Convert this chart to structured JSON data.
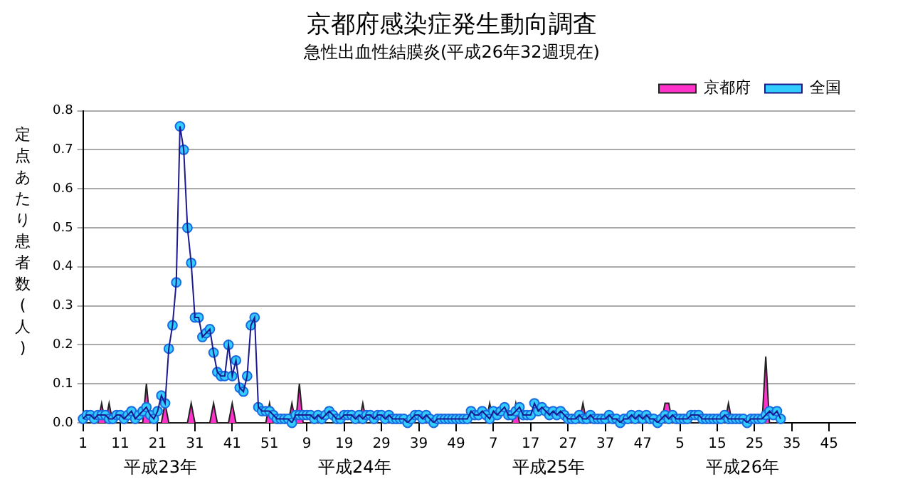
{
  "chart_data": {
    "type": "line",
    "title": "京都府感染症発生動向調査",
    "subtitle": "急性出血性結膜炎(平成26年32週現在)",
    "ylabel": "定点あたり患者数(人)",
    "annotations": [
      "平成23年",
      "平成24年",
      "平成25年",
      "平成26年"
    ],
    "categories": [
      "1",
      null,
      null,
      null,
      null,
      null,
      null,
      null,
      null,
      null,
      "11",
      null,
      null,
      null,
      null,
      null,
      null,
      null,
      null,
      null,
      "21",
      null,
      null,
      null,
      null,
      null,
      null,
      null,
      null,
      null,
      "31",
      null,
      null,
      null,
      null,
      null,
      null,
      null,
      null,
      null,
      "41",
      null,
      null,
      null,
      null,
      null,
      null,
      null,
      null,
      null,
      "51",
      null,
      null,
      null,
      null,
      null,
      null,
      null,
      null,
      null,
      "9",
      null,
      null,
      null,
      null,
      null,
      null,
      null,
      null,
      null,
      "19",
      null,
      null,
      null,
      null,
      null,
      null,
      null,
      null,
      null,
      "29",
      null,
      null,
      null,
      null,
      null,
      null,
      null,
      null,
      null,
      "39",
      null,
      null,
      null,
      null,
      null,
      null,
      null,
      null,
      null,
      "49",
      null,
      null,
      null,
      null,
      null,
      null,
      null,
      null,
      null,
      "7",
      null,
      null,
      null,
      null,
      null,
      null,
      null,
      null,
      null,
      "17",
      null,
      null,
      null,
      null,
      null,
      null,
      null,
      null,
      null,
      "27",
      null,
      null,
      null,
      null,
      null,
      null,
      null,
      null,
      null,
      "37",
      null,
      null,
      null,
      null,
      null,
      null,
      null,
      null,
      null,
      "47",
      null,
      null,
      null,
      null,
      null,
      null,
      null,
      null,
      null,
      "5",
      null,
      null,
      null,
      null,
      null,
      null,
      null,
      null,
      null,
      "15",
      null,
      null,
      null,
      null,
      null,
      null,
      null,
      null,
      null,
      "25",
      null,
      null,
      null,
      null,
      null,
      null,
      null,
      null,
      null,
      "35",
      null,
      null,
      null,
      null,
      null,
      null,
      null,
      null,
      null,
      "45",
      null,
      null,
      null,
      null,
      null,
      null,
      null
    ],
    "series": [
      {
        "name": "京都府",
        "type": "area",
        "color": "#ff33cc",
        "values": [
          0,
          0,
          0,
          0,
          0,
          0.05,
          0,
          0.05,
          0,
          0,
          0,
          0,
          0,
          0,
          0,
          0,
          0,
          0.1,
          0,
          0,
          0,
          0,
          0.05,
          0,
          0,
          0,
          0,
          0,
          0,
          0.05,
          0,
          0,
          0,
          0,
          0,
          0.05,
          0,
          0,
          0,
          0,
          0.05,
          0,
          0,
          0,
          0,
          0,
          0,
          0,
          0,
          0,
          0.05,
          0,
          0,
          0,
          0,
          0,
          0.05,
          0,
          0.1,
          0,
          0,
          0,
          0,
          0,
          0,
          0,
          0,
          0,
          0,
          0,
          0,
          0,
          0,
          0,
          0,
          0.05,
          0,
          0,
          0,
          0,
          0,
          0,
          0,
          0,
          0,
          0,
          0,
          0,
          0,
          0,
          0,
          0,
          0,
          0,
          0,
          0,
          0,
          0,
          0,
          0,
          0,
          0,
          0,
          0,
          0,
          0,
          0,
          0,
          0,
          0.05,
          0,
          0,
          0,
          0,
          0,
          0,
          0.05,
          0,
          0,
          0,
          0,
          0,
          0,
          0,
          0,
          0,
          0,
          0,
          0,
          0,
          0,
          0,
          0,
          0,
          0.05,
          0,
          0,
          0,
          0,
          0,
          0,
          0,
          0,
          0,
          0,
          0,
          0,
          0,
          0,
          0,
          0,
          0,
          0,
          0,
          0,
          0,
          0.05,
          0.05,
          0,
          0,
          0,
          0,
          0,
          0,
          0,
          0,
          0,
          0,
          0,
          0,
          0,
          0,
          0,
          0.05,
          0,
          0,
          0,
          0,
          0,
          0,
          0,
          0,
          0,
          0.17,
          0,
          0,
          0,
          0,
          null,
          null,
          null,
          null,
          null,
          null,
          null,
          null,
          null,
          null,
          null,
          null,
          null,
          null,
          null,
          null,
          null,
          null,
          null,
          null
        ]
      },
      {
        "name": "全国",
        "type": "line",
        "color": "#33ccff",
        "marker": "circle",
        "values": [
          0.01,
          0.02,
          0.02,
          0.01,
          0.02,
          0.02,
          0.02,
          0.01,
          0.01,
          0.02,
          0.02,
          0.01,
          0.02,
          0.03,
          0.01,
          0.02,
          0.03,
          0.04,
          0.02,
          0.01,
          0.03,
          0.07,
          0.05,
          0.19,
          0.25,
          0.36,
          0.76,
          0.7,
          0.5,
          0.41,
          0.27,
          0.27,
          0.22,
          0.23,
          0.24,
          0.18,
          0.13,
          0.12,
          0.12,
          0.2,
          0.12,
          0.16,
          0.09,
          0.08,
          0.12,
          0.25,
          0.27,
          0.04,
          0.03,
          0.03,
          0.03,
          0.02,
          0.01,
          0.01,
          0.01,
          0.01,
          0,
          0.02,
          0.02,
          0.02,
          0.02,
          0.02,
          0.01,
          0.02,
          0.01,
          0.02,
          0.03,
          0.02,
          0.01,
          0.01,
          0.02,
          0.02,
          0.02,
          0.01,
          0.02,
          0.01,
          0.02,
          0.02,
          0.01,
          0.02,
          0.02,
          0.01,
          0.02,
          0.01,
          0.01,
          0.01,
          0.01,
          0,
          0.01,
          0.02,
          0.02,
          0.01,
          0.02,
          0.01,
          0,
          0.01,
          0.01,
          0.01,
          0.01,
          0.01,
          0.01,
          0.01,
          0.01,
          0.01,
          0.03,
          0.02,
          0.02,
          0.03,
          0.02,
          0.01,
          0.03,
          0.02,
          0.03,
          0.04,
          0.02,
          0.02,
          0.03,
          0.04,
          0.02,
          0.02,
          0.02,
          0.05,
          0.03,
          0.04,
          0.03,
          0.02,
          0.03,
          0.02,
          0.03,
          0.02,
          0.01,
          0.01,
          0.01,
          0.02,
          0.01,
          0.01,
          0.02,
          0.01,
          0.01,
          0.01,
          0.01,
          0.02,
          0.01,
          0.01,
          0,
          0.01,
          0.01,
          0.02,
          0.01,
          0.02,
          0.01,
          0.02,
          0.01,
          0.01,
          0,
          0.01,
          0.02,
          0.01,
          0.02,
          0.01,
          0.01,
          0.01,
          0.01,
          0.02,
          0.02,
          0.02,
          0.01,
          0.01,
          0.01,
          0.01,
          0.01,
          0.01,
          0.02,
          0.01,
          0.01,
          0.01,
          0.01,
          0.01,
          0,
          0.01,
          0.01,
          0.01,
          0.01,
          0.02,
          0.03,
          0.02,
          0.03,
          0.01,
          null,
          null,
          null,
          null,
          null,
          null,
          null,
          null,
          null,
          null,
          null,
          null,
          null,
          null,
          null,
          null,
          null,
          null,
          null,
          null
        ]
      }
    ],
    "ylim": [
      0,
      0.8
    ],
    "yticks": [
      {
        "value": 0,
        "label": "0.0"
      },
      0.1,
      0.2,
      0.3,
      0.4,
      0.5,
      0.6,
      0.7,
      0.8
    ],
    "grid": "y",
    "legend": "top right"
  }
}
